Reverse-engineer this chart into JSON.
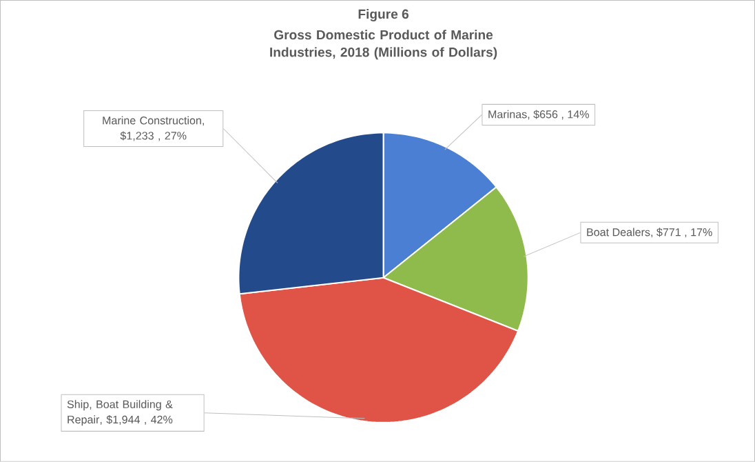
{
  "chart_data": {
    "type": "pie",
    "title": "Figure 6",
    "subtitle": "Gross Domestic Product of Marine Industries, 2018 (Millions of Dollars)",
    "categories": [
      "Marinas",
      "Boat Dealers",
      "Ship, Boat Building & Repair",
      "Marine Construction"
    ],
    "values": [
      656,
      771,
      1944,
      1233
    ],
    "value_labels": [
      ", $656 , 14%",
      ", $771 , 17%",
      ", $1,944 , 42%",
      ", $1,233 , 27%"
    ],
    "colors": [
      "#4a7fd4",
      "#8fba4c",
      "#e05447",
      "#234a8a"
    ]
  }
}
